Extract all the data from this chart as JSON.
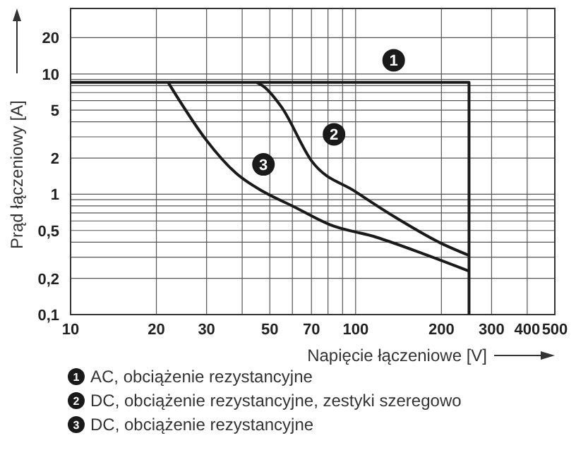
{
  "chart_data": {
    "type": "line",
    "xlabel": "Napięcie łączeniowe [V]",
    "ylabel": "Prąd łączeniowy [A]",
    "log": "xy",
    "grid": true,
    "legend": "bottom",
    "marker": "none",
    "line_style": "solid",
    "xlim": [
      10,
      500
    ],
    "ylim": [
      0.1,
      35
    ],
    "xticks": [
      {
        "value": 10,
        "label": "10"
      },
      {
        "value": 20,
        "label": "20"
      },
      {
        "value": 30,
        "label": "30"
      },
      {
        "value": 40,
        "label": null
      },
      {
        "value": 50,
        "label": "50"
      },
      {
        "value": 60,
        "label": null
      },
      {
        "value": 70,
        "label": "70"
      },
      {
        "value": 80,
        "label": null
      },
      {
        "value": 90,
        "label": null
      },
      {
        "value": 100,
        "label": "100"
      },
      {
        "value": 200,
        "label": "200"
      },
      {
        "value": 300,
        "label": "300"
      },
      {
        "value": 400,
        "label": "400"
      },
      {
        "value": 500,
        "label": "500"
      }
    ],
    "yticks": [
      {
        "value": 0.1,
        "label": "0,1"
      },
      {
        "value": 0.2,
        "label": "0,2"
      },
      {
        "value": 0.3,
        "label": null
      },
      {
        "value": 0.4,
        "label": null
      },
      {
        "value": 0.5,
        "label": "0,5"
      },
      {
        "value": 0.6,
        "label": null
      },
      {
        "value": 0.7,
        "label": null
      },
      {
        "value": 0.8,
        "label": null
      },
      {
        "value": 0.9,
        "label": null
      },
      {
        "value": 1,
        "label": "1"
      },
      {
        "value": 2,
        "label": "2"
      },
      {
        "value": 3,
        "label": null
      },
      {
        "value": 4,
        "label": null
      },
      {
        "value": 5,
        "label": "5"
      },
      {
        "value": 6,
        "label": null
      },
      {
        "value": 7,
        "label": null
      },
      {
        "value": 8,
        "label": null
      },
      {
        "value": 9,
        "label": null
      },
      {
        "value": 10,
        "label": "10"
      },
      {
        "value": 20,
        "label": "20"
      }
    ],
    "series": [
      {
        "name": "AC, obciążenie rezystancyjne",
        "color": "#1a1a1a",
        "x": [
          10,
          250,
          250
        ],
        "values": [
          8.5,
          8.5,
          0.1
        ]
      },
      {
        "name": "DC, obciążenie rezystancyjne, zestyki szeregowo",
        "color": "#1a1a1a",
        "x": [
          45,
          47.5,
          55,
          70,
          100,
          143,
          200,
          250
        ],
        "values": [
          8.5,
          7.9,
          5.3,
          1.9,
          1.05,
          0.61,
          0.39,
          0.31
        ]
      },
      {
        "name": "DC, obciążenie rezystancyjne",
        "color": "#1a1a1a",
        "x": [
          22,
          24,
          30,
          38,
          47.5,
          60,
          81,
          118,
          173,
          250
        ],
        "values": [
          8.5,
          6.1,
          2.8,
          1.5,
          1.05,
          0.8,
          0.56,
          0.44,
          0.32,
          0.23
        ]
      }
    ],
    "annotations": [
      {
        "text": "1",
        "x": 136,
        "y": 13
      },
      {
        "text": "2",
        "x": 84,
        "y": 3.15
      },
      {
        "text": "3",
        "x": 47.5,
        "y": 1.77
      }
    ]
  }
}
